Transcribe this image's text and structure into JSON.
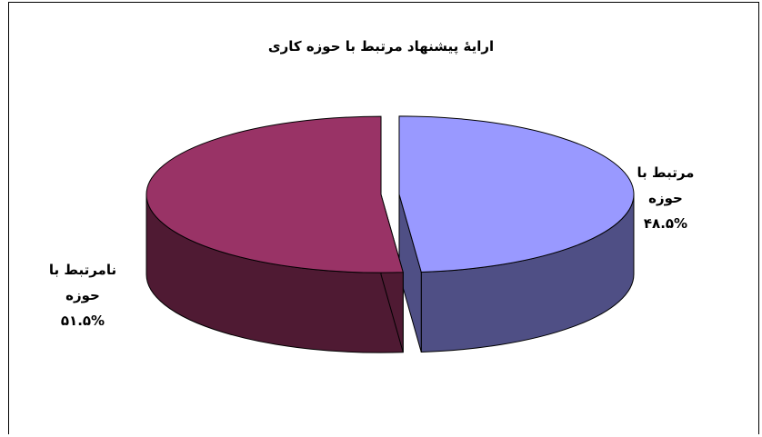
{
  "chart_data": {
    "type": "pie",
    "style": "3d-exploded",
    "title": "ارایۀ پیشنهاد مرتبط با حوزه کاری",
    "slices": [
      {
        "label": "مرتبط با حوزه",
        "value": 48.5,
        "value_text": "۴۸.۵%",
        "color": "#9999FF",
        "side_color": "#4F4F85"
      },
      {
        "label": "نامرتبط با حوزه",
        "value": 51.5,
        "value_text": "۵۱.۵%",
        "color": "#993366",
        "side_color": "#4F1A33"
      }
    ],
    "legend": "none",
    "data_labels": "outside"
  }
}
